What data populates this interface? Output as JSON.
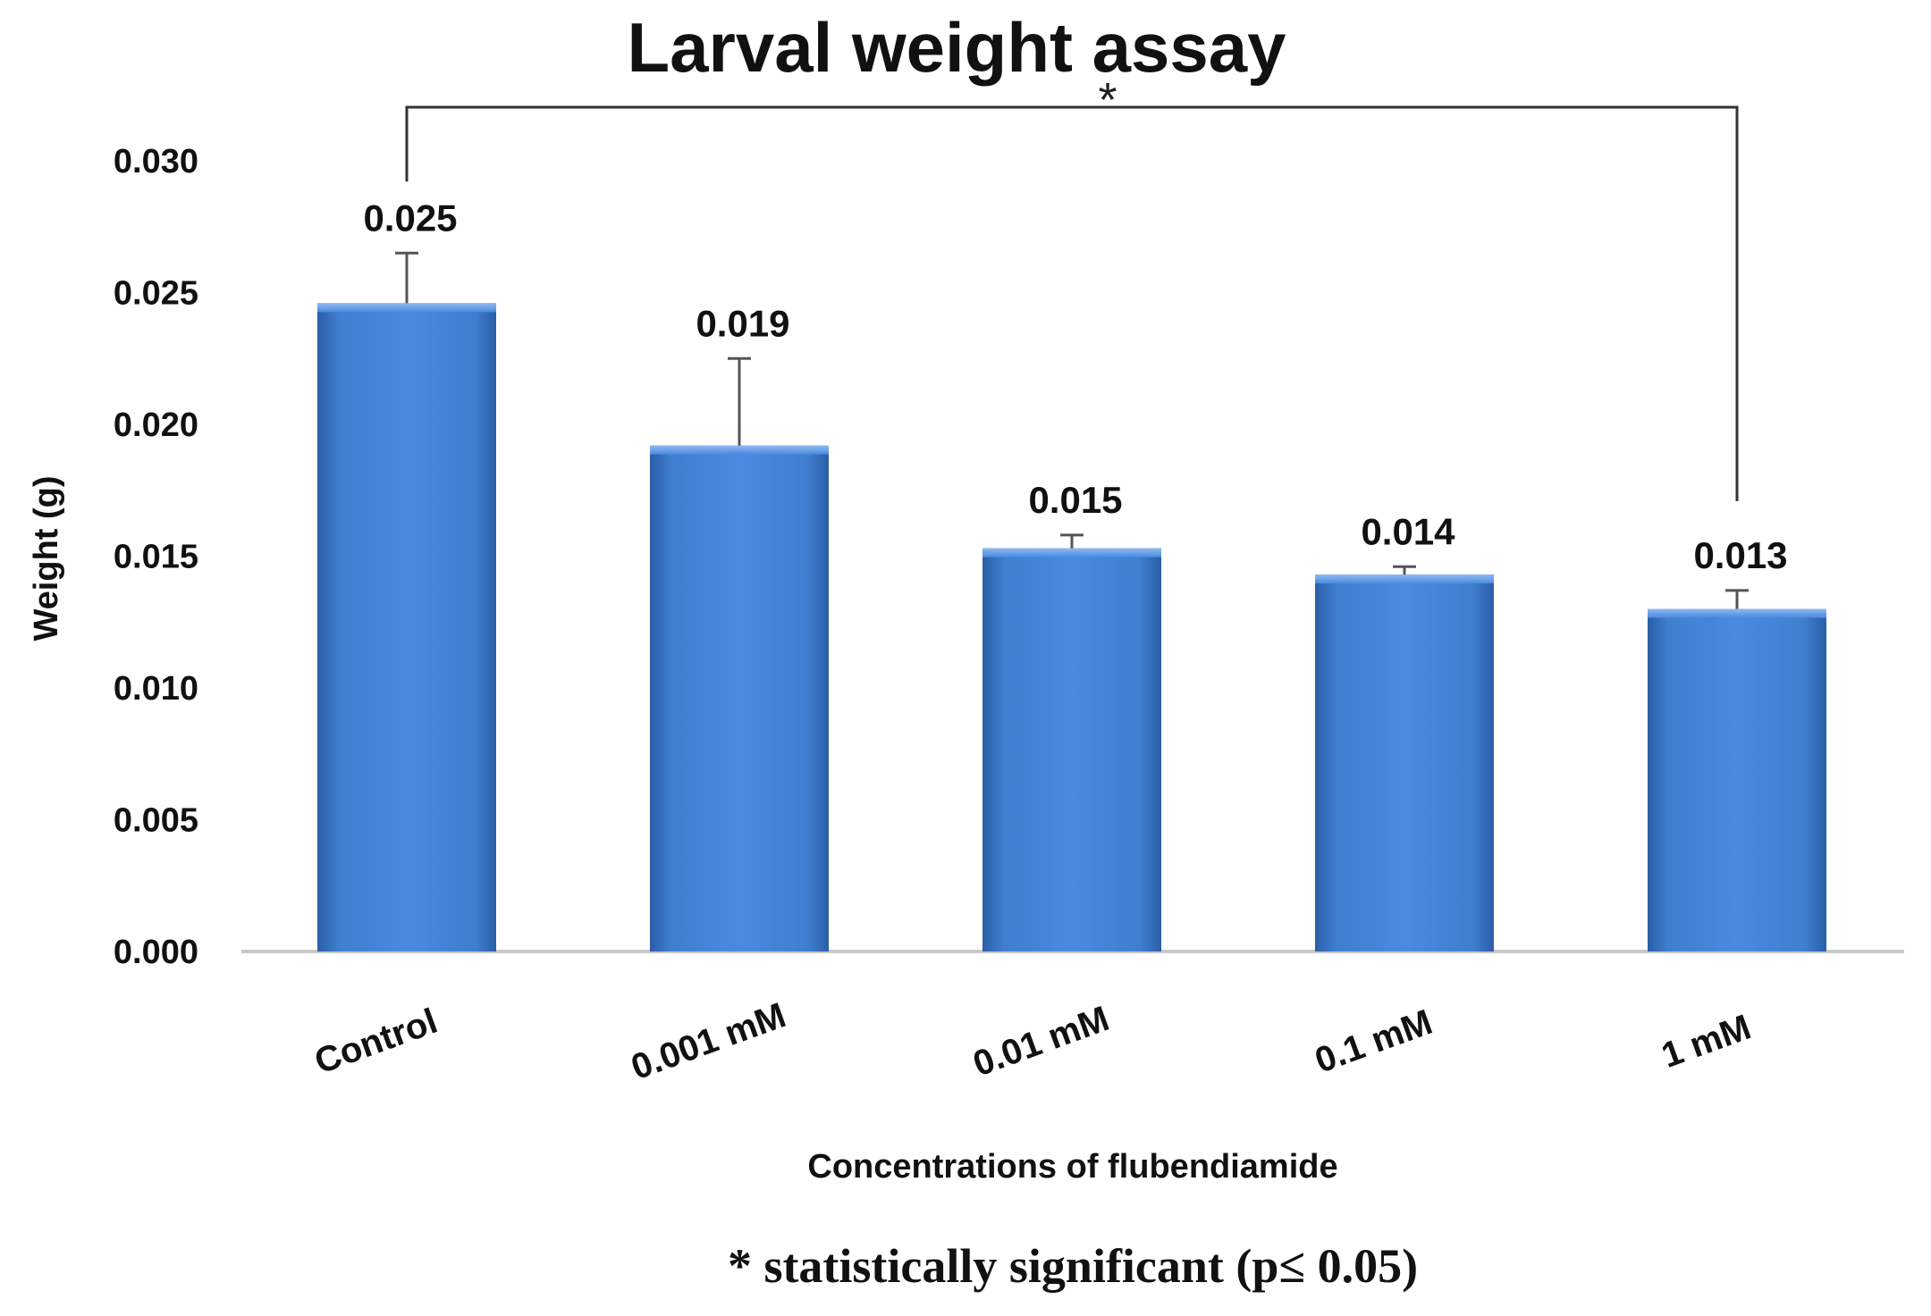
{
  "chart_data": {
    "type": "bar",
    "title": "Larval weight assay",
    "xlabel": "Concentrations of flubendiamide",
    "ylabel": "Weight (g)",
    "categories": [
      "Control",
      "0.001 mM",
      "0.01 mM",
      "0.1 mM",
      "1 mM"
    ],
    "values": [
      0.0246,
      0.0192,
      0.0153,
      0.0143,
      0.013
    ],
    "error": [
      0.0019,
      0.0033,
      0.0005,
      0.0003,
      0.0007
    ],
    "data_labels": [
      "0.025",
      "0.019",
      "0.015",
      "0.014",
      "0.013"
    ],
    "ylim": [
      0,
      0.03
    ],
    "yticks": [
      0,
      0.005,
      0.01,
      0.015,
      0.02,
      0.025,
      0.03
    ],
    "ytick_labels": [
      "0.000",
      "0.005",
      "0.010",
      "0.015",
      "0.020",
      "0.025",
      "0.030"
    ],
    "grid": false,
    "legend": "none",
    "bar_color": "#3f7fd0",
    "significance": {
      "from": "Control",
      "to": "1 mM",
      "marker": "*"
    },
    "footnote": "* statistically significant (p≤ 0.05)"
  }
}
